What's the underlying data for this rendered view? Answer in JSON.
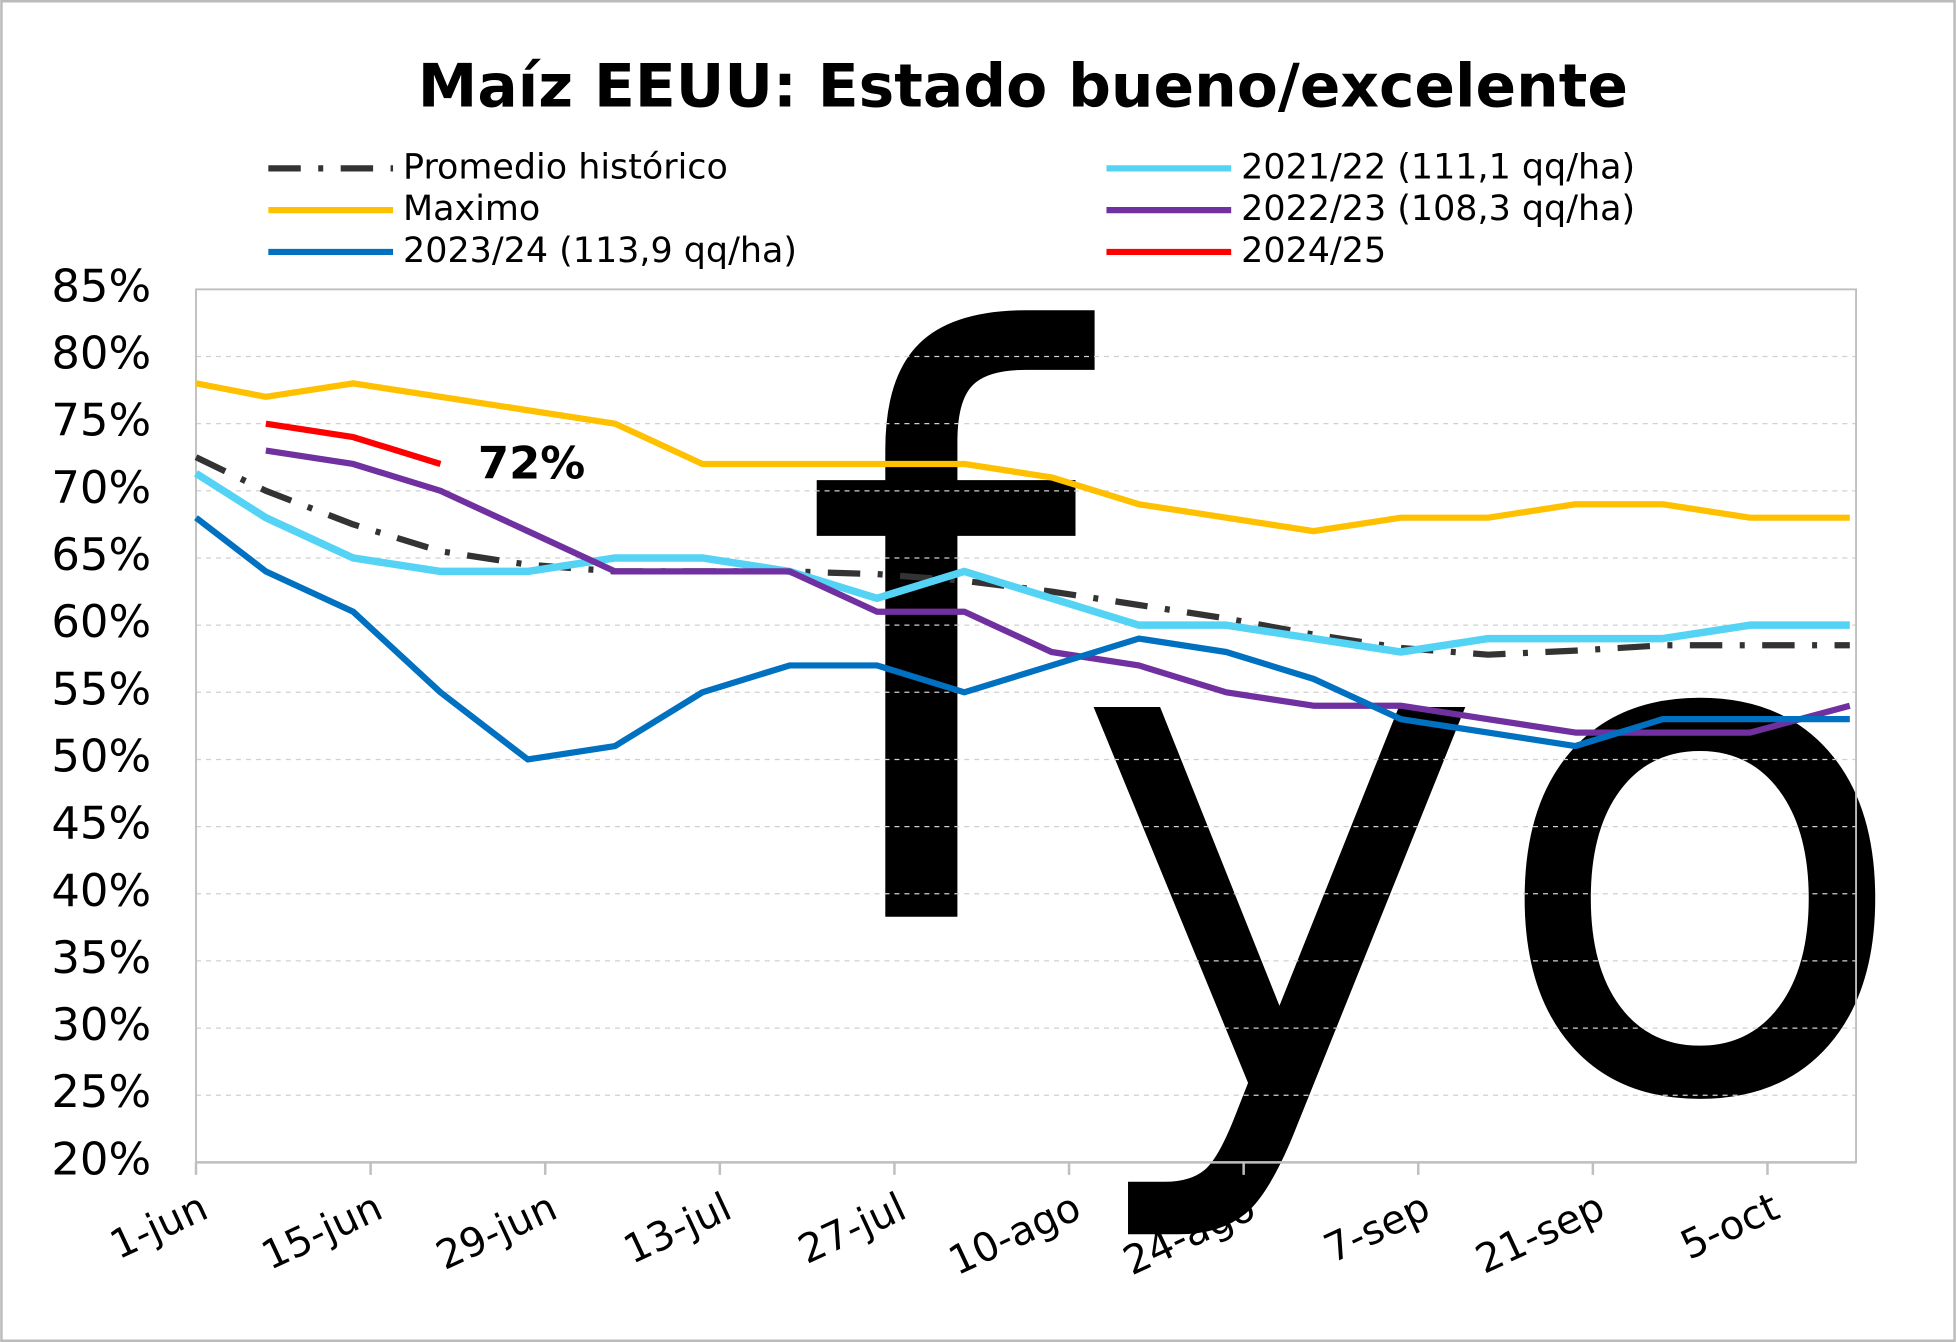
{
  "chart_data": {
    "type": "line",
    "title": "Maíz EEUU: Estado bueno/excelente",
    "x": [
      0,
      5.6,
      12.6,
      19.6,
      26.6,
      33.6,
      40.6,
      47.6,
      54.6,
      61.6,
      68.6,
      75.6,
      82.6,
      89.6,
      96.6,
      103.6,
      110.6,
      117.6,
      124.6,
      132.6
    ],
    "xlim": [
      0,
      133.1
    ],
    "xticks": [
      {
        "value": 0,
        "label": "1-jun"
      },
      {
        "value": 14,
        "label": "15-jun"
      },
      {
        "value": 28,
        "label": "29-jun"
      },
      {
        "value": 42,
        "label": "13-jul"
      },
      {
        "value": 56,
        "label": "27-jul"
      },
      {
        "value": 70,
        "label": "10-ago"
      },
      {
        "value": 84,
        "label": "24-ago"
      },
      {
        "value": 98,
        "label": "7-sep"
      },
      {
        "value": 112,
        "label": "21-sep"
      },
      {
        "value": 126,
        "label": "5-oct"
      }
    ],
    "ylim": [
      20,
      85
    ],
    "yticks": [
      {
        "value": 20,
        "label": "20%"
      },
      {
        "value": 25,
        "label": "25%"
      },
      {
        "value": 30,
        "label": "30%"
      },
      {
        "value": 35,
        "label": "35%"
      },
      {
        "value": 40,
        "label": "40%"
      },
      {
        "value": 45,
        "label": "45%"
      },
      {
        "value": 50,
        "label": "50%"
      },
      {
        "value": 55,
        "label": "55%"
      },
      {
        "value": 60,
        "label": "60%"
      },
      {
        "value": 65,
        "label": "65%"
      },
      {
        "value": 70,
        "label": "70%"
      },
      {
        "value": 75,
        "label": "75%"
      },
      {
        "value": 80,
        "label": "80%"
      },
      {
        "value": 85,
        "label": "85%"
      }
    ],
    "grid": true,
    "series": [
      {
        "name": "Promedio histórico",
        "color": "#333333",
        "dash": "dashdot",
        "values": [
          72.5,
          70,
          67.5,
          65.5,
          64.5,
          64,
          64,
          64,
          63.8,
          63.3,
          62.5,
          61.5,
          60.5,
          59.3,
          58.3,
          57.8,
          58.1,
          58.5,
          58.5,
          58.5
        ]
      },
      {
        "name": "2021/22 (111,1 qq/ha)",
        "color": "#55d3f5",
        "values": [
          71.3,
          68,
          65,
          64,
          64,
          65,
          65,
          64,
          62,
          64,
          62,
          60,
          60,
          59,
          58,
          59,
          59,
          59,
          60,
          60
        ]
      },
      {
        "name": "Maximo",
        "color": "#ffc000",
        "values": [
          78,
          77,
          78,
          77,
          76,
          75,
          72,
          72,
          72,
          72,
          71,
          69,
          68,
          67,
          68,
          68,
          69,
          69,
          68,
          68
        ]
      },
      {
        "name": "2022/23 (108,3 qq/ha)",
        "color": "#7030a0",
        "values": [
          null,
          73,
          72,
          70,
          67,
          64,
          64,
          64,
          61,
          61,
          58,
          57,
          55,
          54,
          54,
          53,
          52,
          52,
          52,
          54
        ]
      },
      {
        "name": "2023/24 (113,9 qq/ha)",
        "color": "#0070c0",
        "values": [
          68,
          64,
          61,
          55,
          50,
          51,
          55,
          57,
          57,
          55,
          57,
          59,
          58,
          56,
          53,
          52,
          51,
          53,
          53,
          53
        ]
      },
      {
        "name": "2024/25",
        "color": "#ff0000",
        "values": [
          null,
          75,
          74,
          72,
          null,
          null,
          null,
          null,
          null,
          null,
          null,
          null,
          null,
          null,
          null,
          null,
          null,
          null,
          null,
          null
        ]
      }
    ],
    "annotations": [
      {
        "text": "72%",
        "x": 19.6,
        "y": 72
      }
    ]
  }
}
